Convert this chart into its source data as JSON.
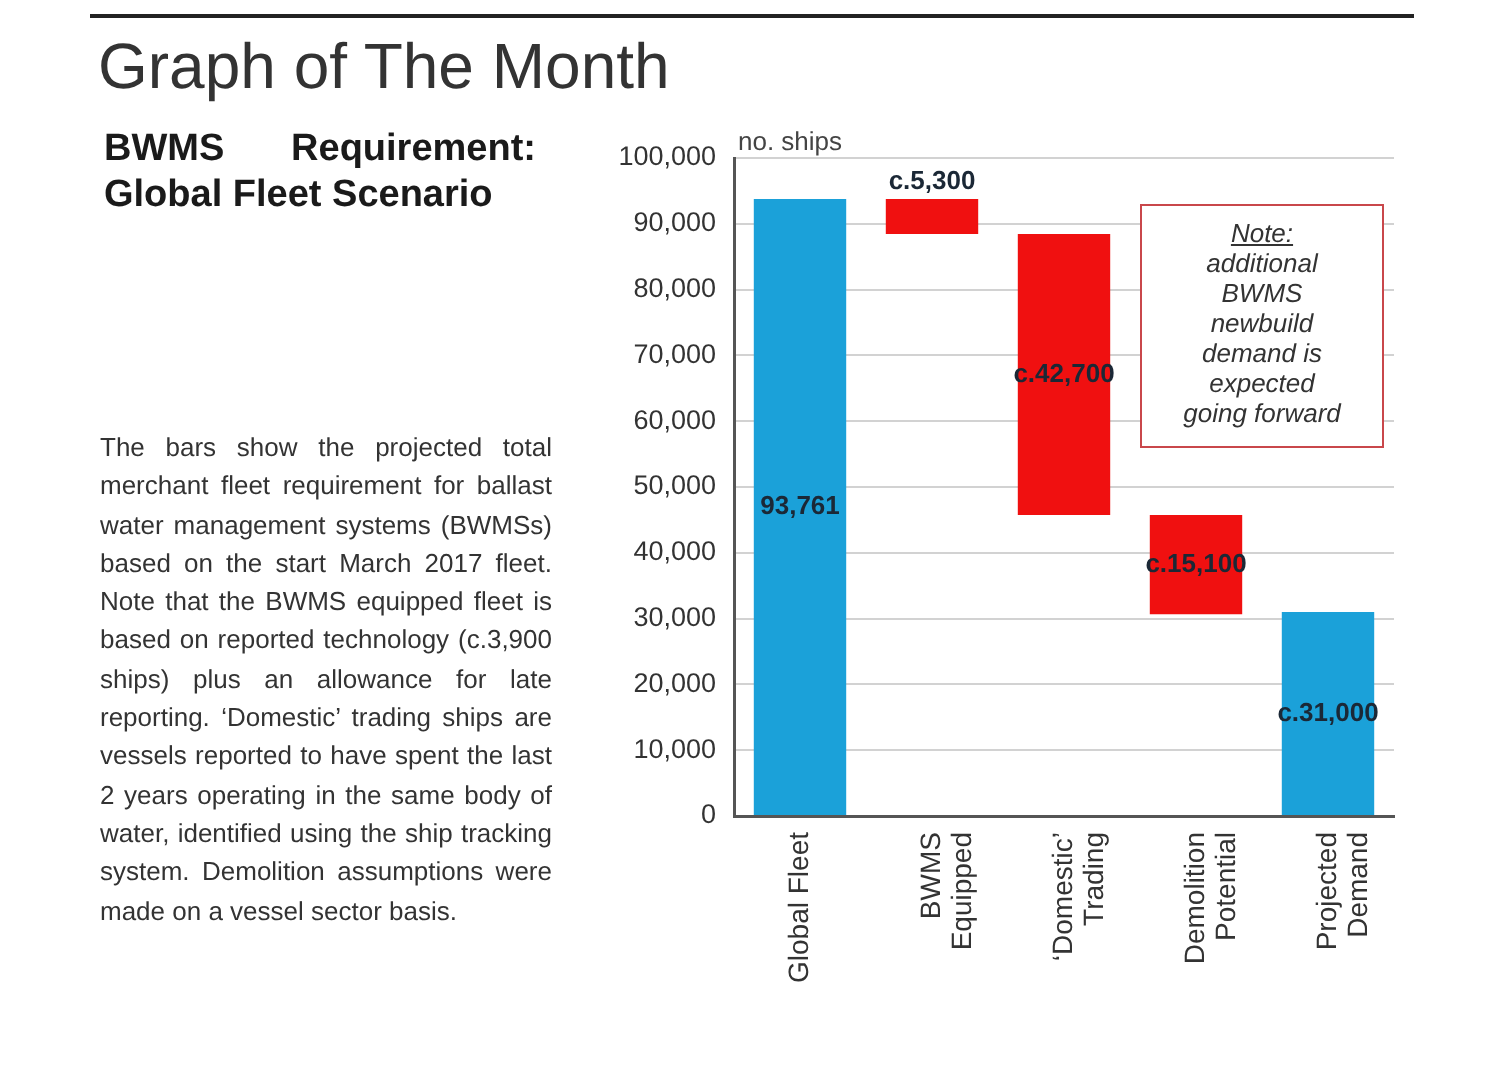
{
  "chart_data": {
    "type": "bar",
    "title": "Graph of The Month",
    "subtitle": "BWMS Requirement: Global Fleet Scenario",
    "ylabel": "no. ships",
    "categories": [
      "Global Fleet",
      "BWMS Equipped",
      "‘Domestic’ Trading",
      "Demolition Potential",
      "Projected Demand"
    ],
    "values": [
      93761,
      5300,
      42700,
      15100,
      31000
    ],
    "base": [
      0,
      88461,
      45761,
      30661,
      0
    ],
    "colors": [
      "#1ba1d9",
      "#f01010",
      "#f01010",
      "#f01010",
      "#1ba1d9"
    ],
    "value_labels": [
      "93,761",
      "c.5,300",
      "c.42,700",
      "c.15,100",
      "c.31,000"
    ],
    "ylim": [
      0,
      100000
    ],
    "yticks": [
      0,
      {
        "value": 10000,
        "label": "10,000"
      },
      {
        "value": 20000,
        "label": "20,000"
      },
      {
        "value": 30000,
        "label": "30,000"
      },
      {
        "value": 40000,
        "label": "40,000"
      },
      {
        "value": 50000,
        "label": "50,000"
      },
      {
        "value": 60000,
        "label": "60,000"
      },
      {
        "value": 70000,
        "label": "70,000"
      },
      {
        "value": 80000,
        "label": "80,000"
      },
      {
        "value": 90000,
        "label": "90,000"
      },
      {
        "value": 100000,
        "label": "100,000"
      }
    ],
    "grid": "y",
    "annotations": [
      "Note:",
      "additional BWMS newbuild demand is expected going forward",
      "The bars show the projected total merchant fleet requirement for ballast water management systems (BWMSs) based on the start March 2017 fleet. Note that the BWMS equipped fleet is based on reported technology (c.3,900 ships) plus an allowance for late reporting. ‘Domestic’ trading ships are vessels reported to have spent the last 2 years operating in the same body of water, identified using the ship tracking system. Demolition assumptions were made on a vessel sector basis."
    ]
  }
}
